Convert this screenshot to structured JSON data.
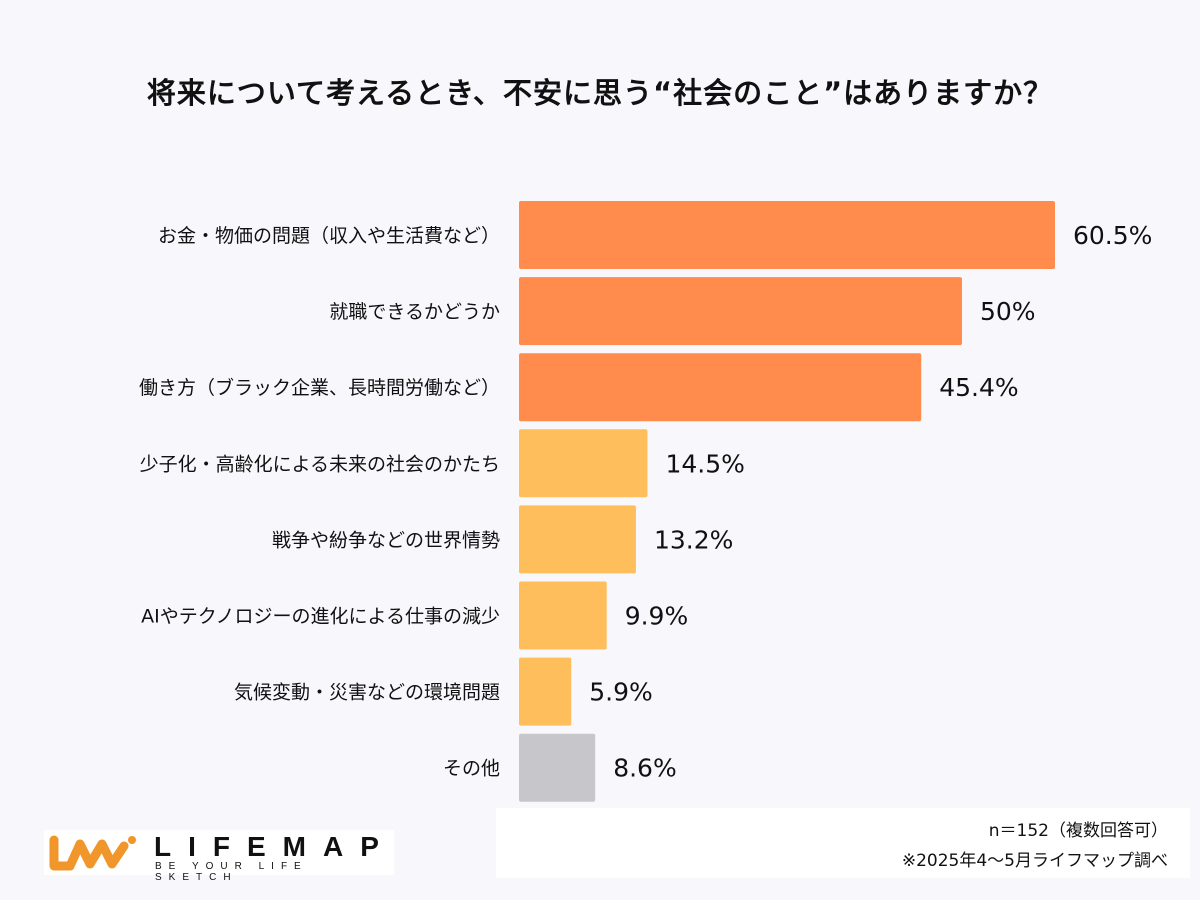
{
  "chart_data": {
    "type": "bar",
    "orientation": "horizontal",
    "title": "将来について考えるとき、不安に思う“社会のこと”はありますか？",
    "categories": [
      "お金・物価の問題（収入や生活費など）",
      "就職できるかどうか",
      "働き方（ブラック企業、長時間労働など）",
      "少子化・高齢化による未来の社会のかたち",
      "戦争や紛争などの世界情勢",
      "AIやテクノロジーの進化による仕事の減少",
      "気候変動・災害などの環境問題",
      "その他"
    ],
    "values": [
      60.5,
      50,
      45.4,
      14.5,
      13.2,
      9.9,
      5.9,
      8.6
    ],
    "value_labels": [
      "60.5%",
      "50%",
      "45.4%",
      "14.5%",
      "13.2%",
      "9.9%",
      "5.9%",
      "8.6%"
    ],
    "unit": "%",
    "colors": [
      "#ff8c4c",
      "#ff8c4c",
      "#ff8c4c",
      "#ffbe5c",
      "#ffbe5c",
      "#ffbe5c",
      "#ffbe5c",
      "#c6c6cb"
    ],
    "grid": false,
    "legend": "none"
  },
  "notes": {
    "sample": "n＝152（複数回答可）",
    "source": "※2025年4〜5月ライフマップ調べ"
  },
  "logo": {
    "wordmark": "LIFEMAP",
    "tagline": "BE YOUR LIFE SKETCH",
    "color": "#f0962a"
  }
}
